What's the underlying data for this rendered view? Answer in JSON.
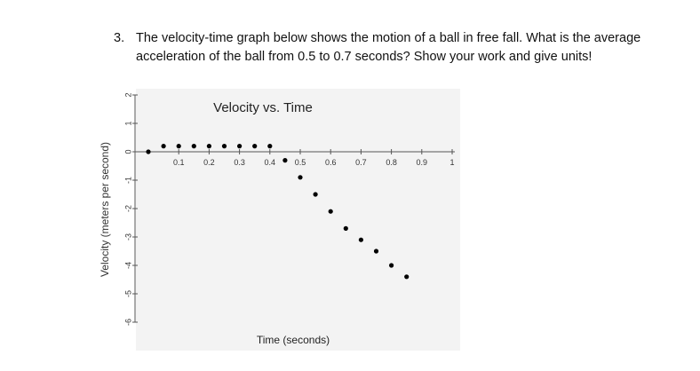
{
  "question": {
    "number": "3.",
    "text": "The velocity-time graph below shows the motion of a ball in free fall.  What is the average acceleration of the ball from 0.5 to 0.7 seconds? Show your work and give units!"
  },
  "chart_data": {
    "type": "scatter",
    "title": "Velocity vs. Time",
    "xlabel": "Time (seconds)",
    "ylabel": "Velocity (meters per second)",
    "xlim": [
      0,
      1
    ],
    "ylim": [
      -6,
      2
    ],
    "x_ticks": [
      "0.1",
      "0.2",
      "0.3",
      "0.4",
      "0.5",
      "0.6",
      "0.7",
      "0.8",
      "0.9",
      "1"
    ],
    "y_ticks": [
      "2",
      "1",
      "0",
      "-1",
      "-2",
      "-3",
      "-4",
      "-5",
      "-6"
    ],
    "grid": false,
    "points": [
      {
        "x": 0.0,
        "y": 0.0
      },
      {
        "x": 0.05,
        "y": 0.2
      },
      {
        "x": 0.1,
        "y": 0.2
      },
      {
        "x": 0.15,
        "y": 0.2
      },
      {
        "x": 0.2,
        "y": 0.2
      },
      {
        "x": 0.25,
        "y": 0.2
      },
      {
        "x": 0.3,
        "y": 0.2
      },
      {
        "x": 0.35,
        "y": 0.2
      },
      {
        "x": 0.4,
        "y": 0.2
      },
      {
        "x": 0.45,
        "y": -0.3
      },
      {
        "x": 0.5,
        "y": -0.9
      },
      {
        "x": 0.55,
        "y": -1.5
      },
      {
        "x": 0.6,
        "y": -2.1
      },
      {
        "x": 0.65,
        "y": -2.7
      },
      {
        "x": 0.7,
        "y": -3.1
      },
      {
        "x": 0.75,
        "y": -3.5
      },
      {
        "x": 0.8,
        "y": -4.0
      },
      {
        "x": 0.85,
        "y": -4.4
      }
    ]
  }
}
